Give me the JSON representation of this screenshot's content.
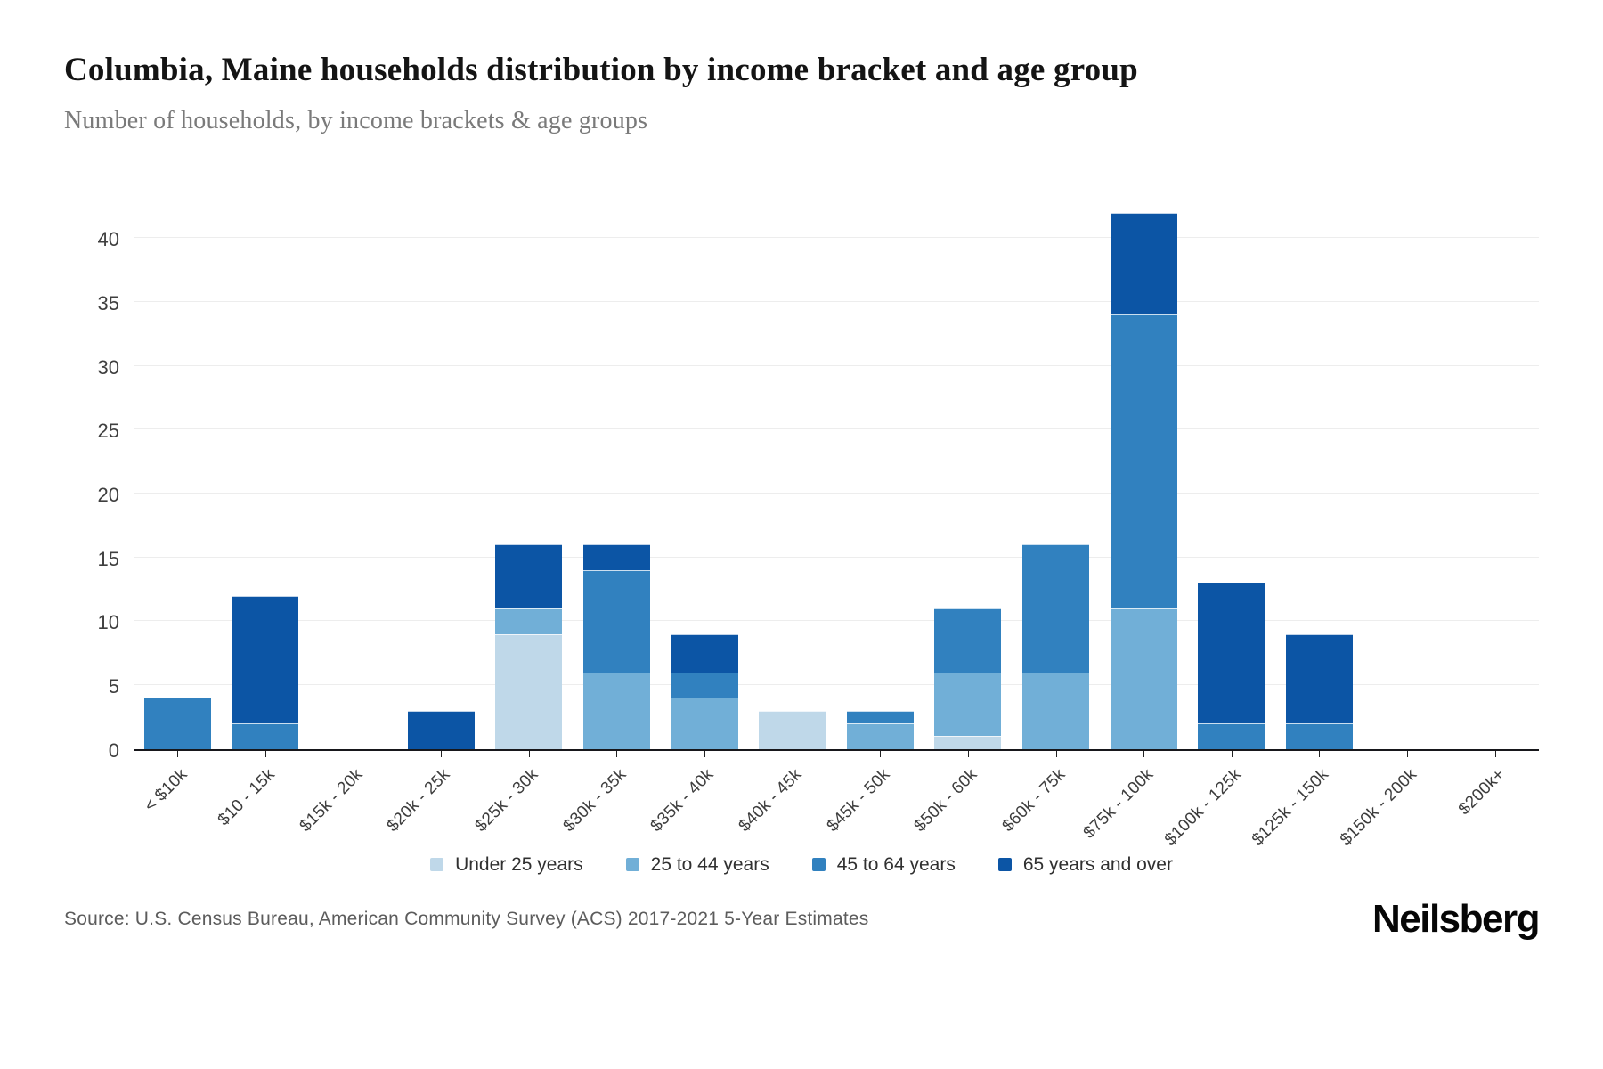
{
  "header": {
    "title": "Columbia, Maine households distribution by income bracket and age group",
    "subtitle": "Number of households, by income brackets & age groups"
  },
  "chart_data": {
    "type": "bar",
    "stacked": true,
    "title": "Columbia, Maine households distribution by income bracket and age group",
    "xlabel": "",
    "ylabel": "Number of households",
    "ylim": [
      0,
      45
    ],
    "yticks": [
      0,
      5,
      10,
      15,
      20,
      25,
      30,
      35,
      40
    ],
    "grid": "horizontal",
    "legend_position": "bottom",
    "categories": [
      "< $10k",
      "$10 - 15k",
      "$15k - 20k",
      "$20k - 25k",
      "$25k - 30k",
      "$30k - 35k",
      "$35k - 40k",
      "$40k - 45k",
      "$45k - 50k",
      "$50k - 60k",
      "$60k - 75k",
      "$75k - 100k",
      "$100k - 125k",
      "$125k - 150k",
      "$150k - 200k",
      "$200k+"
    ],
    "series": [
      {
        "name": "Under 25 years",
        "color": "#bfd8e9",
        "values": [
          0,
          0,
          0,
          0,
          9,
          0,
          0,
          3,
          0,
          1,
          0,
          0,
          0,
          0,
          0,
          0
        ]
      },
      {
        "name": "25 to 44 years",
        "color": "#71afd7",
        "values": [
          0,
          0,
          0,
          0,
          2,
          6,
          4,
          0,
          2,
          5,
          6,
          11,
          0,
          0,
          0,
          0
        ]
      },
      {
        "name": "45 to 64 years",
        "color": "#3181bf",
        "values": [
          4,
          2,
          0,
          0,
          0,
          8,
          2,
          0,
          1,
          5,
          10,
          23,
          2,
          2,
          0,
          0
        ]
      },
      {
        "name": "65 years and over",
        "color": "#0c55a5",
        "values": [
          0,
          10,
          0,
          3,
          5,
          2,
          3,
          0,
          0,
          0,
          0,
          8,
          11,
          7,
          0,
          0
        ]
      }
    ],
    "totals": [
      4,
      12,
      0,
      3,
      16,
      16,
      9,
      3,
      3,
      11,
      16,
      42,
      13,
      9,
      0,
      0
    ]
  },
  "footer": {
    "source": "Source: U.S. Census Bureau, American Community Survey (ACS) 2017-2021 5-Year Estimates",
    "brand": "Neilsberg"
  }
}
